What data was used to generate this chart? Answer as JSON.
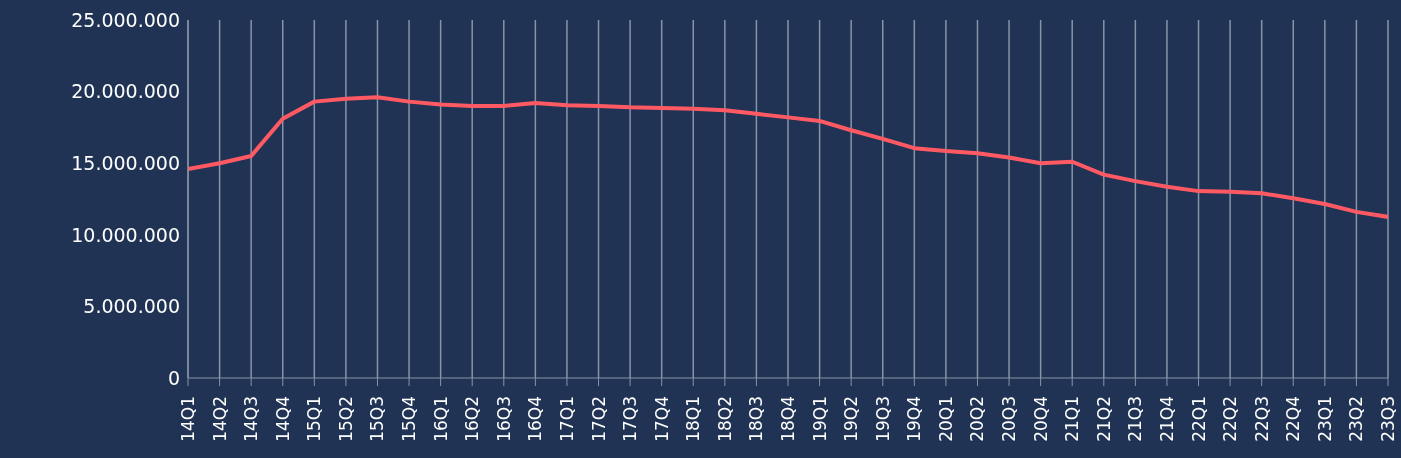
{
  "chart_data": {
    "type": "line",
    "categories": [
      "14Q1",
      "14Q2",
      "14Q3",
      "14Q4",
      "15Q1",
      "15Q2",
      "15Q3",
      "15Q4",
      "16Q1",
      "16Q2",
      "16Q3",
      "16Q4",
      "17Q1",
      "17Q2",
      "17Q3",
      "17Q4",
      "18Q1",
      "18Q2",
      "18Q3",
      "18Q4",
      "19Q1",
      "19Q2",
      "19Q3",
      "19Q4",
      "20Q1",
      "20Q2",
      "20Q3",
      "20Q4",
      "21Q1",
      "21Q2",
      "21Q3",
      "21Q4",
      "22Q1",
      "22Q2",
      "22Q3",
      "22Q4",
      "23Q1",
      "23Q2",
      "23Q3"
    ],
    "series": [
      {
        "color": "#ff5a63",
        "values": [
          14600000,
          15000000,
          15500000,
          18100000,
          19300000,
          19500000,
          19600000,
          19300000,
          19100000,
          19000000,
          19000000,
          19200000,
          19050000,
          19000000,
          18900000,
          18850000,
          18800000,
          18700000,
          18450000,
          18200000,
          17950000,
          17300000,
          16700000,
          16050000,
          15850000,
          15700000,
          15400000,
          15000000,
          15100000,
          14200000,
          13750000,
          13350000,
          13050000,
          13000000,
          12900000,
          12550000,
          12150000,
          11600000,
          11250000
        ]
      }
    ],
    "ylim": [
      0,
      25000000
    ],
    "yticks": [
      {
        "value": 0,
        "label": "0"
      },
      {
        "value": 5000000,
        "label": "5.000.000"
      },
      {
        "value": 10000000,
        "label": "10.000.000"
      },
      {
        "value": 15000000,
        "label": "15.000.000"
      },
      {
        "value": 20000000,
        "label": "20.000.000"
      },
      {
        "value": 25000000,
        "label": "25.000.000"
      }
    ],
    "grid": "x",
    "legend": false,
    "marker": "none",
    "line_style": "solid"
  }
}
